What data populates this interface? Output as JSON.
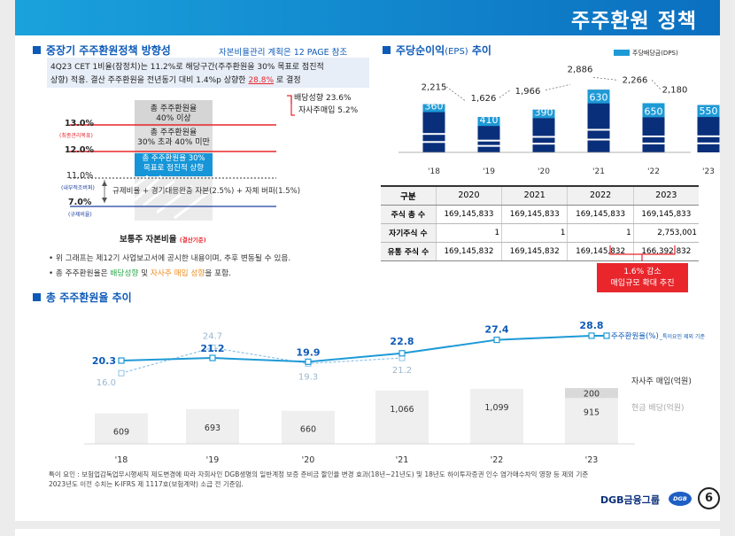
{
  "header": {
    "title": "주주환원 정책"
  },
  "policy": {
    "title": "중장기 주주환원정책 방향성",
    "ref": "자본비율관리 계획은 12 PAGE 참조",
    "desc1": "4Q23 CET 1비율(잠정치)는 11.2%로 해당구간(주주환원을 30% 목표로 점진적",
    "desc2a": "상향) 적용. 결산 주주환원을 전년동기 대비 1.4%p 상향한 ",
    "desc2b": "28.8%",
    "desc2c": " 로 결정",
    "payout": "배당성향 23.6%",
    "buyback": "자사주매입 5.2%",
    "band1a": "총 주주환원율",
    "band1b": "40% 이상",
    "band2a": "총 주주환원율",
    "band2b": "30% 초과 40% 미만",
    "band3a": "총 주주환원율 30%",
    "band3b": "목표로 점진적 상향",
    "level13": "13.0%",
    "level13s": "(최종관리목표)",
    "level12": "12.0%",
    "level11": "11.0%",
    "level11s": "(내부적조버퍼)",
    "level7": "7.0%",
    "level7s": "(규제비율)",
    "reg": "규제비율 + 경기대응완충 자본(2.5%) + 자체 버퍼(1.5%)",
    "axis_a": "보통주 자본비율 ",
    "axis_b": "(결산기준)",
    "note1": "위 그래프는 제12기 사업보고서에 공시한 내용이며, 추후 변동될 수 있음.",
    "note2a": "총 주주환원율은 ",
    "note2b": "배당성향",
    "note2c": " 및 ",
    "note2d": "자사주 매입 성향",
    "note2e": "을 포함."
  },
  "eps": {
    "title": "주당순이익",
    "title_en": "(EPS)",
    "title_b": " 추이",
    "legend": "주당배당금(DPS)"
  },
  "eps_chart": {
    "type": "bar",
    "categories": [
      "'18",
      "'19",
      "'20",
      "'21",
      "'22",
      "'23"
    ],
    "series": [
      {
        "values": [
          2215,
          1626,
          1966,
          2886,
          2266,
          2180
        ]
      },
      {
        "name": "주당배당금(DPS)",
        "values": [
          360,
          410,
          390,
          630,
          650,
          550
        ]
      }
    ]
  },
  "shares_table": {
    "headers": [
      "구분",
      "2020",
      "2021",
      "2022",
      "2023"
    ],
    "rows": [
      [
        "주식 총 수",
        "169,145,833",
        "169,145,833",
        "169,145,833",
        "169,145,833"
      ],
      [
        "자기주식 수",
        "1",
        "1",
        "1",
        "2,753,001"
      ],
      [
        "유통 주식 수",
        "169,145,832",
        "169,145,832",
        "169,145,832",
        "166,392,832"
      ]
    ],
    "callout1": "1.6% 감소",
    "callout2": "매입규모 확대 추진"
  },
  "tsr": {
    "title": "총 주주환원율 추이",
    "note": "특이요인 제외 기준"
  },
  "chart_data": {
    "type": "line",
    "categories": [
      "'18",
      "'19",
      "'20",
      "'21",
      "'22",
      "'23"
    ],
    "series": [
      {
        "name": "주주환원율(%)",
        "values": [
          20.3,
          21.2,
          19.9,
          22.8,
          27.4,
          28.8
        ]
      },
      {
        "values": [
          16.0,
          24.7,
          19.3,
          21.2,
          null,
          null
        ]
      }
    ],
    "bars": [
      {
        "name": "현금 배당(억원)",
        "values": [
          609,
          693,
          660,
          1066,
          1099,
          915
        ]
      },
      {
        "name": "자사주 매입(억원)",
        "values": [
          null,
          null,
          null,
          null,
          null,
          200
        ]
      }
    ]
  },
  "footnote1": "특이 요인 : 보험업감독업무시행세칙 제도변경에 따라 자회사인 DGB생명의 일반계정 보증 준비금 할인율 변경 효과(18년~21년도) 및 18년도 하이투자증권 인수 염가매수차익 영향 등 제외 기준",
  "footnote2": "2023년도 이전 수치는 K-IFRS 제 1117호(보험계약) 소급 전 기준임.",
  "footer": {
    "brand": "DGB금융그룹",
    "logo": "DGB",
    "page": "6"
  },
  "colors": {
    "primary": "#0d5ab8",
    "navy": "#0a2f7a",
    "sky": "#1e9ad6",
    "red": "#e8262c",
    "green": "#2ba84a",
    "orange": "#f08c1e",
    "header": "#0b6fc0"
  }
}
